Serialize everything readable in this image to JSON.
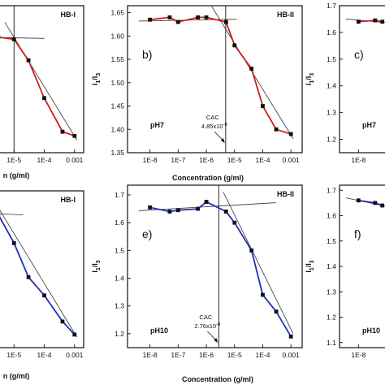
{
  "colors": {
    "red_series": "#cc1f1f",
    "blue_series": "#1f2fb8",
    "fit": "#333333",
    "marker": "#111111"
  },
  "chart_data": [
    {
      "type": "line",
      "panel": "a",
      "series_label": "HB-I",
      "panel_label": "",
      "ph_label": "",
      "xlabel": "n (g/ml)",
      "ylabel": "",
      "x_scale": "log",
      "x_ticks": [
        "1E-5",
        "1E-4",
        "0.001"
      ],
      "y_ticks": [],
      "xlim": [
        1e-06,
        0.002
      ],
      "ylim": [
        1.35,
        1.7
      ],
      "line_color": "#cc1f1f",
      "x": [
        3e-06,
        1e-05,
        3e-05,
        0.0001,
        0.0004,
        0.001
      ],
      "y": [
        1.625,
        1.62,
        1.57,
        1.48,
        1.4,
        1.39
      ],
      "fits": [
        {
          "from": [
            1e-06,
            1.625
          ],
          "to": [
            0.0001,
            1.622
          ]
        },
        {
          "from": [
            5e-06,
            1.66
          ],
          "to": [
            0.0012,
            1.38
          ]
        }
      ],
      "cac_x": 1e-05,
      "cac_label": "",
      "cac_value": ""
    },
    {
      "type": "line",
      "panel": "b",
      "series_label": "HB-II",
      "panel_label": "b)",
      "ph_label": "pH7",
      "xlabel": "Concentration (g/ml)",
      "ylabel": "I1/I3",
      "x_scale": "log",
      "x_ticks": [
        "1E-8",
        "1E-7",
        "1E-6",
        "1E-5",
        "1E-4",
        "0.001"
      ],
      "y_ticks": [
        "1.35",
        "1.40",
        "1.45",
        "1.50",
        "1.55",
        "1.60",
        "1.65"
      ],
      "xlim": [
        1.6e-09,
        0.0025
      ],
      "ylim": [
        1.35,
        1.665
      ],
      "line_color": "#cc1f1f",
      "x": [
        1e-08,
        5e-08,
        1e-07,
        5e-07,
        1e-06,
        5e-06,
        1e-05,
        4e-05,
        0.0001,
        0.0003,
        0.001
      ],
      "y": [
        1.635,
        1.64,
        1.63,
        1.64,
        1.64,
        1.63,
        1.58,
        1.53,
        1.45,
        1.4,
        1.39
      ],
      "fits": [
        {
          "from": [
            4e-09,
            1.632
          ],
          "to": [
            1.2e-05,
            1.636
          ]
        },
        {
          "from": [
            1.5e-06,
            1.665
          ],
          "to": [
            0.0012,
            1.38
          ]
        }
      ],
      "cac_x": 4.85e-06,
      "cac_label": "CAC",
      "cac_value": "4.85x10",
      "cac_exp": "-6"
    },
    {
      "type": "line",
      "panel": "c",
      "series_label": "",
      "panel_label": "c)",
      "ph_label": "pH7",
      "xlabel": "",
      "ylabel": "I1/I3",
      "x_scale": "log",
      "x_ticks": [
        "1E-8"
      ],
      "y_ticks": [
        "1.2",
        "1.3",
        "1.4",
        "1.5",
        "1.6",
        "1.7"
      ],
      "xlim": [
        1.6e-09,
        1e-06
      ],
      "ylim": [
        1.15,
        1.7
      ],
      "line_color": "#cc1f1f",
      "x": [
        1e-08,
        5e-08,
        1e-07
      ],
      "y": [
        1.64,
        1.645,
        1.64
      ],
      "fits": [
        {
          "from": [
            3e-09,
            1.65
          ],
          "to": [
            1e-06,
            1.63
          ]
        }
      ],
      "cac_x": null,
      "cac_label": "",
      "cac_value": ""
    },
    {
      "type": "line",
      "panel": "d",
      "series_label": "HB-I",
      "panel_label": "",
      "ph_label": "",
      "xlabel": "n (g/ml)",
      "ylabel": "",
      "x_scale": "log",
      "x_ticks": [
        "1E-5",
        "1E-4",
        "0.001"
      ],
      "y_ticks": [],
      "xlim": [
        1e-06,
        0.002
      ],
      "ylim": [
        1.15,
        1.75
      ],
      "line_color": "#1f2fb8",
      "x": [
        3e-06,
        1e-05,
        3e-05,
        0.0001,
        0.0004,
        0.001
      ],
      "y": [
        1.66,
        1.55,
        1.42,
        1.35,
        1.25,
        1.2
      ],
      "fits": [
        {
          "from": [
            1e-06,
            1.665
          ],
          "to": [
            2e-05,
            1.658
          ]
        },
        {
          "from": [
            2e-06,
            1.72
          ],
          "to": [
            0.0012,
            1.19
          ]
        }
      ],
      "cac_x": null,
      "cac_label": "",
      "cac_value": ""
    },
    {
      "type": "line",
      "panel": "e",
      "series_label": "HB-II",
      "panel_label": "e)",
      "ph_label": "pH10",
      "xlabel": "Concentration (g/ml)",
      "ylabel": "I1/I3",
      "x_scale": "log",
      "x_ticks": [
        "1E-8",
        "1E-7",
        "1E-6",
        "1E-5",
        "1E-4",
        "0.001"
      ],
      "y_ticks": [
        "1.2",
        "1.3",
        "1.4",
        "1.5",
        "1.6",
        "1.7"
      ],
      "xlim": [
        1.6e-09,
        0.0025
      ],
      "ylim": [
        1.15,
        1.735
      ],
      "line_color": "#1f2fb8",
      "x": [
        1e-08,
        5e-08,
        1e-07,
        5e-07,
        1e-06,
        5e-06,
        1e-05,
        4e-05,
        0.0001,
        0.0003,
        0.001
      ],
      "y": [
        1.655,
        1.64,
        1.645,
        1.65,
        1.675,
        1.64,
        1.6,
        1.5,
        1.34,
        1.28,
        1.19
      ],
      "fits": [
        {
          "from": [
            4e-09,
            1.643
          ],
          "to": [
            0.0003,
            1.672
          ]
        },
        {
          "from": [
            4e-06,
            1.71
          ],
          "to": [
            0.0012,
            1.2
          ]
        }
      ],
      "cac_x": 2.76e-06,
      "cac_label": "CAC",
      "cac_value": "2.76x10",
      "cac_exp": "-6"
    },
    {
      "type": "line",
      "panel": "f",
      "series_label": "",
      "panel_label": "f)",
      "ph_label": "pH10",
      "xlabel": "",
      "ylabel": "I1/I3",
      "x_scale": "log",
      "x_ticks": [
        "1E-8"
      ],
      "y_ticks": [
        "1.1",
        "1.2",
        "1.3",
        "1.4",
        "1.5",
        "1.6",
        "1.7"
      ],
      "xlim": [
        1.6e-09,
        1e-06
      ],
      "ylim": [
        1.08,
        1.72
      ],
      "line_color": "#1f2fb8",
      "x": [
        1e-08,
        5e-08,
        1e-07
      ],
      "y": [
        1.66,
        1.65,
        1.64
      ],
      "fits": [
        {
          "from": [
            3e-09,
            1.67
          ],
          "to": [
            1e-06,
            1.62
          ]
        }
      ],
      "cac_x": null,
      "cac_label": "",
      "cac_value": ""
    }
  ]
}
